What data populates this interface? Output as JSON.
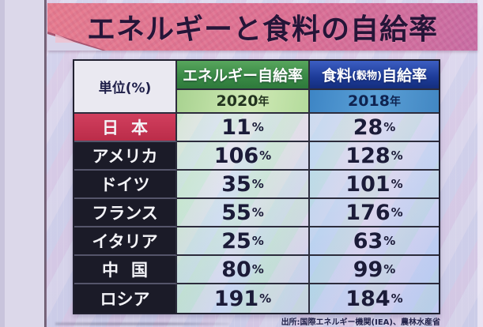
{
  "title": "エネルギーと食料の自給率",
  "table": {
    "unit_label": "単位(%)",
    "energy_header": {
      "label": "エネルギー自給率",
      "year": "2020",
      "year_unit": "年"
    },
    "food_header": {
      "label_main": "食料",
      "label_paren": "(穀物)",
      "label_rest": "自給率",
      "year": "2018",
      "year_unit": "年"
    },
    "percent": "%",
    "rows": [
      {
        "country": "日本",
        "energy": "11",
        "food": "28"
      },
      {
        "country": "アメリカ",
        "energy": "106",
        "food": "128"
      },
      {
        "country": "ドイツ",
        "energy": "35",
        "food": "101"
      },
      {
        "country": "フランス",
        "energy": "55",
        "food": "176"
      },
      {
        "country": "イタリア",
        "energy": "25",
        "food": "63"
      },
      {
        "country": "中国",
        "energy": "80",
        "food": "99"
      },
      {
        "country": "ロシア",
        "energy": "191",
        "food": "184"
      }
    ]
  },
  "source": "出所:国際エネルギー機関(IEA)、農林水産省",
  "colors": {
    "banner_pink": "#df7390",
    "banner_text": "#251538",
    "energy_green": "#3a8a46",
    "energy_light_green": "#c6e5ad",
    "food_blue": "#1d3b98",
    "food_light_blue": "#4f93cc",
    "japan_red": "#c23350",
    "country_row_black": "#1b1b28",
    "board_lavender": "#d7d3ea",
    "value_text": "#1b1b38"
  },
  "chart_data": {
    "type": "table",
    "title": "エネルギーと食料の自給率",
    "unit": "%",
    "categories": [
      "日本",
      "アメリカ",
      "ドイツ",
      "フランス",
      "イタリア",
      "中国",
      "ロシア"
    ],
    "series": [
      {
        "name": "エネルギー自給率",
        "year": 2020,
        "values": [
          11,
          106,
          35,
          55,
          25,
          80,
          191
        ]
      },
      {
        "name": "食料(穀物)自給率",
        "year": 2018,
        "values": [
          28,
          128,
          101,
          176,
          63,
          99,
          184
        ]
      }
    ],
    "source": "出所:国際エネルギー機関(IEA)、農林水産省"
  }
}
